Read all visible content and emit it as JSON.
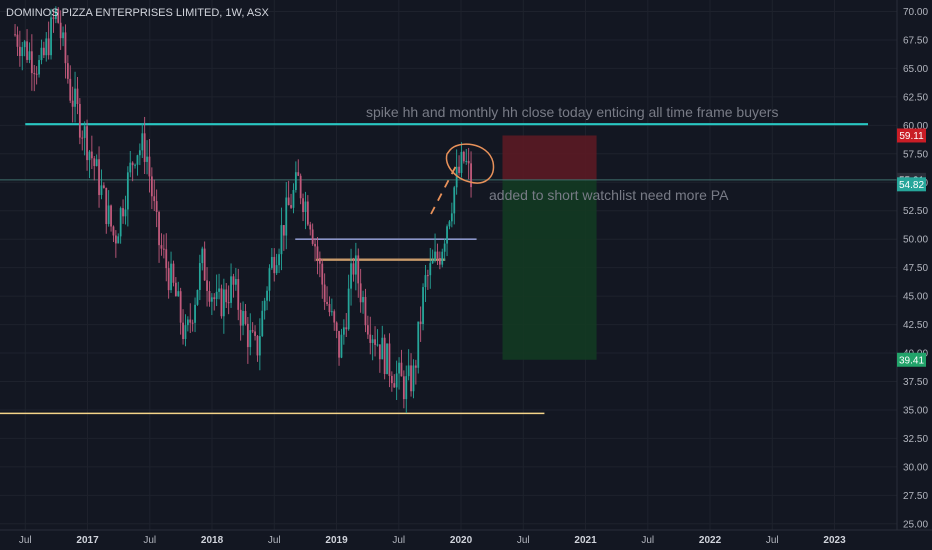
{
  "header": {
    "title": "DOMINOS PIZZA ENTERPRISES LIMITED, 1W, ASX"
  },
  "annotations": {
    "top": "spike hh and monthly hh close today enticing  all time frame buyers",
    "mid": "added to short watchlist need more PA"
  },
  "colors": {
    "background": "#131722",
    "up": "#26a69a",
    "down": "#c25a7c",
    "cyan_line": "#29c7c2",
    "support_line": "#f5d58a",
    "stop_zone": "#5b1a24",
    "target_zone": "#133a22",
    "stop_badge": "#c91d26",
    "target_badge": "#22a36a",
    "price_badge": "#26a69a"
  },
  "badges": {
    "stop": "59.11",
    "current_upper": "55.21",
    "current": "54.82",
    "target": "39.41"
  },
  "chart_data": {
    "type": "candlestick",
    "title": "DOMINOS PIZZA ENTERPRISES LIMITED, 1W, ASX",
    "ylim": [
      25,
      71
    ],
    "y_ticks": [
      "25.00",
      "27.50",
      "30.00",
      "32.50",
      "35.00",
      "37.50",
      "40.00",
      "42.50",
      "45.00",
      "47.50",
      "50.00",
      "52.50",
      "55.00",
      "57.50",
      "60.00",
      "62.50",
      "65.00",
      "67.50",
      "70.00"
    ],
    "x_ticks": [
      "Jul",
      "2017",
      "Jul",
      "2018",
      "Jul",
      "2019",
      "Jul",
      "2020",
      "Jul",
      "2021",
      "Jul",
      "2022",
      "Jul",
      "2023"
    ],
    "price_path": [
      [
        "2016-06-01",
        68
      ],
      [
        "2016-08-15",
        65
      ],
      [
        "2016-10-01",
        70
      ],
      [
        "2016-11-10",
        63
      ],
      [
        "2017-01-15",
        57
      ],
      [
        "2017-03-20",
        50
      ],
      [
        "2017-05-20",
        58
      ],
      [
        "2017-06-20",
        58
      ],
      [
        "2017-07-25",
        50
      ],
      [
        "2017-09-15",
        45
      ],
      [
        "2017-10-15",
        41
      ],
      [
        "2017-12-01",
        48
      ],
      [
        "2018-01-15",
        44
      ],
      [
        "2018-03-01",
        46
      ],
      [
        "2018-04-10",
        42
      ],
      [
        "2018-05-10",
        40
      ],
      [
        "2018-06-15",
        47
      ],
      [
        "2018-08-15",
        53
      ],
      [
        "2018-09-10",
        55
      ],
      [
        "2018-10-15",
        52
      ],
      [
        "2018-11-20",
        46
      ],
      [
        "2019-01-10",
        40
      ],
      [
        "2019-02-20",
        48
      ],
      [
        "2019-04-01",
        43
      ],
      [
        "2019-06-01",
        39
      ],
      [
        "2019-07-20",
        37
      ],
      [
        "2019-08-15",
        38
      ],
      [
        "2019-09-15",
        46
      ],
      [
        "2019-11-01",
        49
      ],
      [
        "2019-12-15",
        55
      ],
      [
        "2020-01-10",
        57
      ],
      [
        "2020-02-01",
        54.82
      ]
    ],
    "levels": {
      "resistance": 60.1,
      "support": 34.7,
      "blue_line": 50.0,
      "orange_line": 48.2,
      "stop": 59.11,
      "entry": 55.21,
      "current": 54.82,
      "target": 39.41
    },
    "dates": {
      "resistance_start": "2016-07-01",
      "blue_line_start": "2018-09-01",
      "blue_line_end": "2020-02-15",
      "orange_line_start": "2018-11-01",
      "orange_line_end": "2019-11-15",
      "zone_start": "2020-05-01",
      "zone_end": "2021-02-01",
      "support_end": "2020-09-01"
    },
    "grid": true
  }
}
